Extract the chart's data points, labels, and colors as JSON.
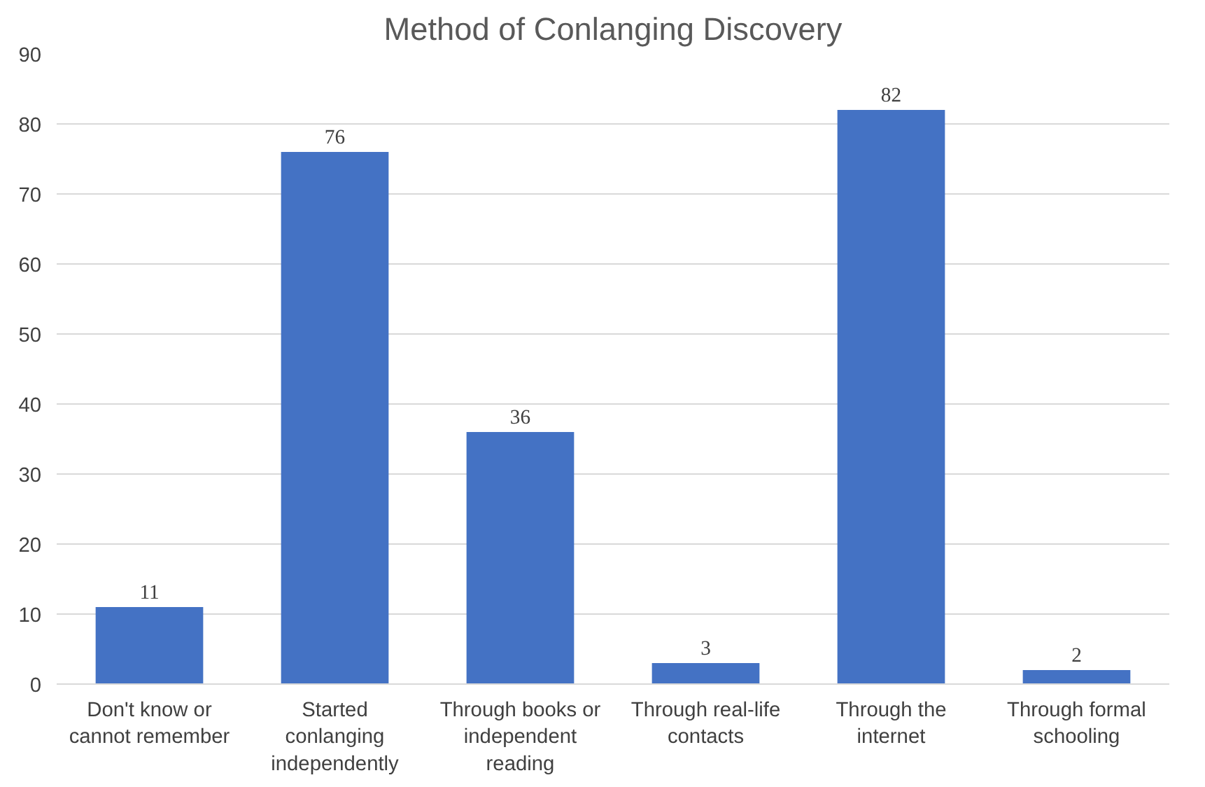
{
  "chart_data": {
    "type": "bar",
    "title": "Method of Conlanging Discovery",
    "categories": [
      "Don't know or cannot remember",
      "Started conlanging independently",
      "Through books or independent reading",
      "Through real-life contacts",
      "Through the internet",
      "Through formal schooling"
    ],
    "values": [
      11,
      76,
      36,
      3,
      82,
      2
    ],
    "color": "#4472c4",
    "ylim": [
      0,
      90
    ],
    "yticks": [
      0,
      10,
      20,
      30,
      40,
      50,
      60,
      70,
      80,
      90
    ],
    "grid": "y",
    "data_labels": true
  }
}
